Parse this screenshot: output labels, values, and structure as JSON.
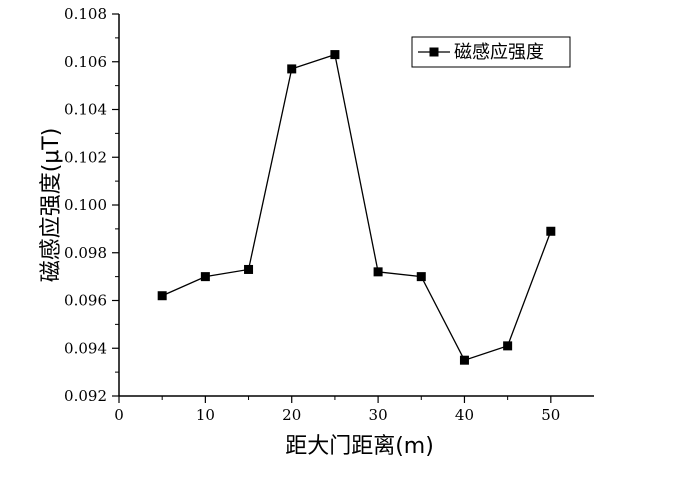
{
  "chart_data": {
    "type": "line",
    "xlabel": "距大门距离(m)",
    "ylabel": "磁感应强度(μT)",
    "xlim": [
      0,
      55
    ],
    "ylim": [
      0.092,
      0.108
    ],
    "xticks": [
      0,
      10,
      20,
      30,
      40,
      50
    ],
    "xtick_labels": [
      "0",
      "10",
      "20",
      "30",
      "40",
      "50"
    ],
    "yticks": [
      0.092,
      0.094,
      0.096,
      0.098,
      0.1,
      0.102,
      0.104,
      0.106,
      0.108
    ],
    "ytick_labels": [
      "0.092",
      "0.094",
      "0.096",
      "0.098",
      "0.100",
      "0.102",
      "0.104",
      "0.106",
      "0.108"
    ],
    "grid": false,
    "legend_position": "top-right",
    "series": [
      {
        "name": "磁感应强度",
        "color": "#000000",
        "marker": "square",
        "x": [
          5,
          10,
          15,
          20,
          25,
          30,
          35,
          40,
          45,
          50
        ],
        "y": [
          0.0962,
          0.097,
          0.0973,
          0.1057,
          0.1063,
          0.0972,
          0.097,
          0.0935,
          0.0941,
          0.0989
        ]
      }
    ]
  }
}
